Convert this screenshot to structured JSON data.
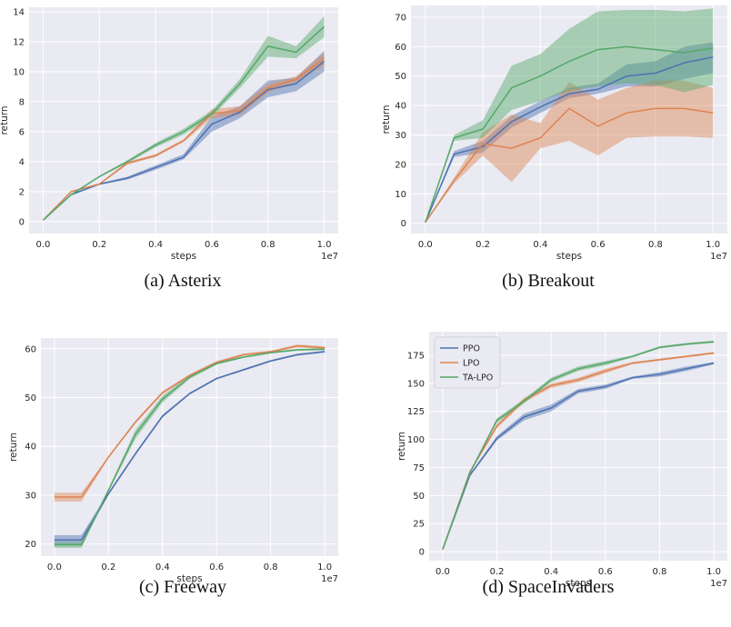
{
  "chart_data": [
    {
      "type": "line",
      "caption": "(a) Asterix",
      "xlabel": "steps",
      "ylabel": "return",
      "x_multiplier_label": "1e7",
      "x": [
        0,
        0.1,
        0.2,
        0.3,
        0.4,
        0.5,
        0.6,
        0.7,
        0.8,
        0.9,
        1.0
      ],
      "xticks": [
        "0.0",
        "0.2",
        "0.4",
        "0.6",
        "0.8",
        "1.0"
      ],
      "xlim": [
        -0.05,
        1.05
      ],
      "ylim": [
        -0.8,
        14.3
      ],
      "yticks": [
        0,
        2,
        4,
        6,
        8,
        10,
        12,
        14
      ],
      "grid": true,
      "series": [
        {
          "name": "PPO",
          "color": "#4c72b0",
          "mean": [
            0.1,
            1.8,
            2.5,
            2.9,
            3.6,
            4.3,
            6.5,
            7.3,
            8.8,
            9.2,
            10.7
          ],
          "lower": [
            0.1,
            1.75,
            2.45,
            2.8,
            3.45,
            4.15,
            6.0,
            6.9,
            8.3,
            8.7,
            10.0
          ],
          "upper": [
            0.1,
            1.85,
            2.55,
            3.0,
            3.75,
            4.5,
            7.0,
            7.7,
            9.4,
            9.6,
            11.4
          ]
        },
        {
          "name": "LPO",
          "color": "#dd8452",
          "mean": [
            0.1,
            2.0,
            2.5,
            3.9,
            4.4,
            5.4,
            7.2,
            7.4,
            8.9,
            9.5,
            10.9
          ],
          "lower": [
            0.1,
            1.95,
            2.45,
            3.8,
            4.3,
            5.3,
            6.9,
            7.1,
            8.6,
            9.3,
            10.4
          ],
          "upper": [
            0.1,
            2.05,
            2.55,
            4.0,
            4.5,
            5.5,
            7.5,
            7.7,
            9.2,
            9.7,
            11.3
          ]
        },
        {
          "name": "TA-LPO",
          "color": "#55a868",
          "mean": [
            0.1,
            1.8,
            3.0,
            4.0,
            5.1,
            6.0,
            7.2,
            9.2,
            11.7,
            11.3,
            13.0
          ],
          "lower": [
            0.1,
            1.75,
            2.95,
            3.9,
            4.95,
            5.8,
            7.0,
            8.9,
            11.0,
            10.9,
            12.3
          ],
          "upper": [
            0.1,
            1.85,
            3.05,
            4.1,
            5.25,
            6.2,
            7.4,
            9.5,
            12.4,
            11.7,
            13.7
          ]
        }
      ]
    },
    {
      "type": "line",
      "caption": "(b) Breakout",
      "xlabel": "steps",
      "ylabel": "return",
      "x_multiplier_label": "1e7",
      "x": [
        0,
        0.1,
        0.2,
        0.3,
        0.4,
        0.5,
        0.6,
        0.7,
        0.8,
        0.9,
        1.0
      ],
      "xticks": [
        "0.0",
        "0.2",
        "0.4",
        "0.6",
        "0.8",
        "1.0"
      ],
      "xlim": [
        -0.05,
        1.05
      ],
      "ylim": [
        -3.5,
        74
      ],
      "yticks": [
        0,
        10,
        20,
        30,
        40,
        50,
        60,
        70
      ],
      "grid": true,
      "series": [
        {
          "name": "PPO",
          "color": "#4c72b0",
          "mean": [
            0.3,
            23.5,
            26.0,
            34.5,
            39.5,
            44.0,
            45.5,
            50.0,
            51.0,
            54.5,
            56.5
          ],
          "lower": [
            0.3,
            22.5,
            24.0,
            32.5,
            37.5,
            42.5,
            44.0,
            46.5,
            46.5,
            49.0,
            51.0
          ],
          "upper": [
            0.3,
            24.5,
            28.0,
            36.5,
            41.5,
            46.0,
            47.5,
            54.0,
            55.0,
            60.0,
            61.5
          ]
        },
        {
          "name": "LPO",
          "color": "#dd8452",
          "mean": [
            0.3,
            14.5,
            27.0,
            25.5,
            29.0,
            39.0,
            33.0,
            37.5,
            39.0,
            39.0,
            37.5
          ],
          "lower": [
            0.3,
            13.5,
            23.0,
            14.0,
            25.5,
            28.0,
            23.0,
            29.0,
            29.5,
            29.5,
            29.0
          ],
          "upper": [
            0.3,
            15.5,
            31.0,
            37.0,
            34.0,
            48.0,
            42.0,
            46.0,
            48.5,
            48.5,
            46.0
          ]
        },
        {
          "name": "TA-LPO",
          "color": "#55a868",
          "mean": [
            0.3,
            29.0,
            32.0,
            46.0,
            50.0,
            55.0,
            59.0,
            60.0,
            59.0,
            58.0,
            59.5
          ],
          "lower": [
            0.3,
            28.0,
            29.0,
            38.5,
            41.5,
            45.0,
            46.5,
            47.5,
            47.0,
            44.5,
            47.0
          ],
          "upper": [
            0.3,
            30.0,
            35.0,
            53.5,
            57.5,
            66.0,
            72.0,
            72.5,
            72.5,
            72.0,
            73.0
          ]
        }
      ]
    },
    {
      "type": "line",
      "caption": "(c) Freeway",
      "xlabel": "steps",
      "ylabel": "return",
      "x_multiplier_label": "1e7",
      "x": [
        0,
        0.1,
        0.2,
        0.3,
        0.4,
        0.5,
        0.6,
        0.7,
        0.8,
        0.9,
        1.0
      ],
      "xticks": [
        "0.0",
        "0.2",
        "0.4",
        "0.6",
        "0.8",
        "1.0"
      ],
      "xlim": [
        -0.05,
        1.05
      ],
      "ylim": [
        17.5,
        62.2
      ],
      "yticks": [
        20,
        30,
        40,
        50,
        60
      ],
      "grid": true,
      "series": [
        {
          "name": "PPO",
          "color": "#4c72b0",
          "mean": [
            20.8,
            20.8,
            30.3,
            38.5,
            46.2,
            50.8,
            53.9,
            55.7,
            57.5,
            58.8,
            59.4
          ],
          "lower": [
            19.9,
            19.9,
            30.0,
            38.2,
            45.9,
            50.6,
            53.7,
            55.5,
            57.3,
            58.6,
            59.2
          ],
          "upper": [
            21.8,
            21.8,
            30.6,
            38.8,
            46.5,
            51.0,
            54.1,
            55.9,
            57.7,
            59.0,
            59.6
          ]
        },
        {
          "name": "LPO",
          "color": "#dd8452",
          "mean": [
            29.6,
            29.6,
            37.8,
            45.0,
            51.0,
            54.5,
            57.2,
            58.8,
            59.4,
            60.6,
            60.2
          ],
          "lower": [
            28.7,
            28.7,
            37.6,
            44.7,
            50.7,
            54.3,
            56.9,
            58.6,
            59.2,
            60.3,
            59.9
          ],
          "upper": [
            30.5,
            30.5,
            38.0,
            45.3,
            51.3,
            54.8,
            57.5,
            59.0,
            59.6,
            60.9,
            60.5
          ]
        },
        {
          "name": "TA-LPO",
          "color": "#55a868",
          "mean": [
            19.8,
            19.8,
            31.0,
            42.5,
            49.7,
            54.2,
            57.0,
            58.3,
            59.2,
            59.8,
            59.9
          ],
          "lower": [
            19.2,
            19.2,
            30.7,
            41.6,
            49.0,
            53.8,
            56.7,
            58.1,
            59.0,
            59.6,
            59.7
          ],
          "upper": [
            20.4,
            20.4,
            31.3,
            43.4,
            50.4,
            54.6,
            57.3,
            58.5,
            59.4,
            60.0,
            60.1
          ]
        }
      ]
    },
    {
      "type": "line",
      "caption": "(d) SpaceInvaders",
      "xlabel": "steps",
      "ylabel": "return",
      "x_multiplier_label": "1e7",
      "x": [
        0,
        0.1,
        0.2,
        0.3,
        0.4,
        0.5,
        0.6,
        0.7,
        0.8,
        0.9,
        1.0
      ],
      "xticks": [
        "0.0",
        "0.2",
        "0.4",
        "0.6",
        "0.8",
        "1.0"
      ],
      "xlim": [
        -0.05,
        1.05
      ],
      "ylim": [
        -8,
        196
      ],
      "yticks": [
        0,
        25,
        50,
        75,
        100,
        125,
        150,
        175
      ],
      "grid": true,
      "legend": {
        "position": "top-left",
        "entries": [
          "PPO",
          "LPO",
          "TA-LPO"
        ]
      },
      "series": [
        {
          "name": "PPO",
          "color": "#4c72b0",
          "mean": [
            2,
            68,
            101,
            120,
            128,
            143,
            147,
            155,
            158,
            163,
            168
          ],
          "lower": [
            2,
            67,
            99,
            117,
            125,
            141,
            145,
            154,
            156,
            161,
            167
          ],
          "upper": [
            2,
            69,
            103,
            123,
            131,
            145,
            149,
            156,
            160,
            165,
            169
          ]
        },
        {
          "name": "LPO",
          "color": "#dd8452",
          "mean": [
            2,
            71,
            112,
            135,
            148,
            153,
            161,
            168,
            171,
            174,
            177
          ],
          "lower": [
            2,
            70,
            110,
            133,
            146,
            151,
            159,
            167,
            170,
            173,
            176
          ],
          "upper": [
            2,
            72,
            114,
            137,
            150,
            155,
            163,
            169,
            172,
            175,
            178
          ]
        },
        {
          "name": "TA-LPO",
          "color": "#55a868",
          "mean": [
            2,
            70,
            117,
            134,
            153,
            163,
            168,
            174,
            182,
            185,
            187
          ],
          "lower": [
            2,
            69,
            115,
            132,
            151,
            161,
            166,
            173,
            181,
            184,
            186
          ],
          "upper": [
            2,
            71,
            119,
            136,
            155,
            165,
            170,
            175,
            183,
            186,
            188
          ]
        }
      ]
    }
  ]
}
